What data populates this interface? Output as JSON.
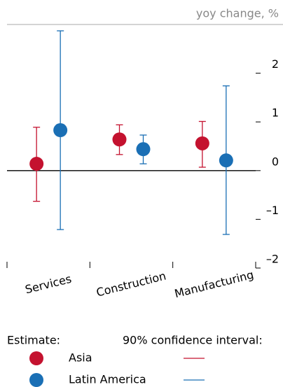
{
  "chart_data": {
    "type": "dot_errorbar",
    "y_unit_label": "yoy change, %",
    "categories": [
      "Services",
      "Construction",
      "Manufacturing"
    ],
    "series": [
      {
        "name": "Asia",
        "color": "#c4122f",
        "values": [
          0.14,
          0.64,
          0.56
        ],
        "lower": [
          -0.63,
          0.33,
          0.07
        ],
        "upper": [
          0.89,
          0.94,
          1.01
        ]
      },
      {
        "name": "Latin America",
        "color": "#1a6fb5",
        "values": [
          0.83,
          0.44,
          0.21
        ],
        "lower": [
          -1.21,
          0.14,
          -1.31
        ],
        "upper": [
          2.87,
          0.73,
          1.74
        ]
      }
    ],
    "ylim": [
      -2,
      3
    ],
    "yticks": [
      {
        "value": -2,
        "label": "–2"
      },
      {
        "value": -1,
        "label": "–1"
      },
      0,
      1,
      2
    ],
    "legend_marker_title": "Estimate:",
    "legend_interval_title": "90% confidence interval:"
  }
}
